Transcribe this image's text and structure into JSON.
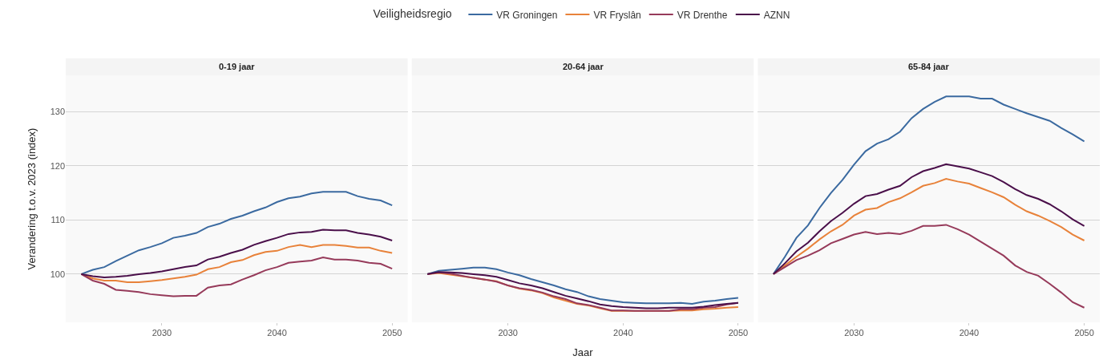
{
  "chart_data": [
    {
      "type": "line",
      "title": "0-19 jaar",
      "ylabel": "Verandering t.o.v. 2023 (index)",
      "legend_title": "Veiligheidsregio",
      "legend": "top",
      "grid": "y",
      "x": [
        2023,
        2024,
        2025,
        2026,
        2027,
        2028,
        2029,
        2030,
        2031,
        2032,
        2033,
        2034,
        2035,
        2036,
        2037,
        2038,
        2039,
        2040,
        2041,
        2042,
        2043,
        2044,
        2045,
        2046,
        2047,
        2048,
        2049,
        2050
      ],
      "xlim": [
        2021.65,
        2051.35
      ],
      "xticks": [
        2030,
        2040,
        2050
      ],
      "ylim": [
        91.1,
        136.7
      ],
      "yticks": [
        100,
        110,
        120,
        130
      ],
      "series": [
        {
          "name": "VR Groningen",
          "color": "#3b6aa0",
          "values": [
            100,
            100.8,
            101.3,
            102.4,
            103.4,
            104.4,
            105.0,
            105.7,
            106.7,
            107.1,
            107.6,
            108.7,
            109.3,
            110.2,
            110.8,
            111.6,
            112.3,
            113.3,
            114.0,
            114.3,
            114.9,
            115.2,
            115.2,
            115.2,
            114.4,
            113.9,
            113.6,
            112.7
          ]
        },
        {
          "name": "VR Fryslân",
          "color": "#e8823a",
          "values": [
            100,
            99.2,
            98.8,
            98.8,
            98.5,
            98.5,
            98.7,
            98.9,
            99.2,
            99.5,
            99.9,
            100.9,
            101.3,
            102.2,
            102.6,
            103.5,
            104.1,
            104.3,
            105.0,
            105.4,
            105.0,
            105.4,
            105.4,
            105.2,
            104.9,
            104.9,
            104.3,
            103.9
          ]
        },
        {
          "name": "VR Drenthe",
          "color": "#963a5a",
          "values": [
            100,
            98.8,
            98.2,
            97.1,
            96.9,
            96.7,
            96.3,
            96.1,
            95.9,
            96.0,
            96.0,
            97.5,
            97.9,
            98.1,
            99.0,
            99.8,
            100.7,
            101.3,
            102.1,
            102.3,
            102.5,
            103.1,
            102.7,
            102.7,
            102.5,
            102.1,
            101.9,
            101.0
          ]
        },
        {
          "name": "AZNN",
          "color": "#4a0f4a",
          "values": [
            100,
            99.6,
            99.4,
            99.5,
            99.7,
            100.0,
            100.2,
            100.5,
            100.9,
            101.3,
            101.6,
            102.7,
            103.2,
            103.9,
            104.5,
            105.4,
            106.1,
            106.7,
            107.4,
            107.7,
            107.8,
            108.2,
            108.1,
            108.1,
            107.6,
            107.3,
            106.9,
            106.2
          ]
        }
      ]
    },
    {
      "type": "line",
      "title": "20-64 jaar",
      "xlabel": "Jaar",
      "grid": "y",
      "tick_labels": "x",
      "x": [
        2023,
        2024,
        2025,
        2026,
        2027,
        2028,
        2029,
        2030,
        2031,
        2032,
        2033,
        2034,
        2035,
        2036,
        2037,
        2038,
        2039,
        2040,
        2041,
        2042,
        2043,
        2044,
        2045,
        2046,
        2047,
        2048,
        2049,
        2050
      ],
      "xlim": [
        2021.65,
        2051.35
      ],
      "xticks": [
        2030,
        2040,
        2050
      ],
      "ylim": [
        91.1,
        136.7
      ],
      "yticks": [
        100,
        110,
        120,
        130
      ],
      "series": [
        {
          "color": "#3b6aa0",
          "values": [
            100,
            100.6,
            100.8,
            101.0,
            101.2,
            101.2,
            100.9,
            100.3,
            99.8,
            99.1,
            98.5,
            97.9,
            97.2,
            96.7,
            95.9,
            95.4,
            95.1,
            94.8,
            94.7,
            94.6,
            94.6,
            94.6,
            94.7,
            94.5,
            94.9,
            95.1,
            95.4,
            95.6
          ]
        },
        {
          "color": "#e8823a",
          "values": [
            100,
            100.2,
            99.9,
            99.6,
            99.3,
            99.0,
            98.7,
            97.9,
            97.3,
            97.0,
            96.5,
            95.7,
            95.1,
            94.5,
            94.2,
            93.7,
            93.2,
            93.2,
            93.2,
            93.2,
            93.2,
            93.2,
            93.3,
            93.3,
            93.5,
            93.6,
            93.8,
            93.9
          ]
        },
        {
          "color": "#963a5a",
          "values": [
            100,
            100.3,
            100.1,
            99.7,
            99.3,
            99.0,
            98.6,
            97.9,
            97.4,
            97.1,
            96.6,
            95.9,
            95.4,
            94.6,
            94.3,
            93.8,
            93.3,
            93.3,
            93.2,
            93.2,
            93.2,
            93.2,
            93.5,
            93.5,
            93.8,
            93.9,
            94.4,
            94.7
          ]
        },
        {
          "color": "#4a0f4a",
          "values": [
            100,
            100.4,
            100.3,
            100.2,
            100.0,
            99.8,
            99.5,
            98.9,
            98.3,
            97.9,
            97.4,
            96.7,
            96.0,
            95.5,
            95.0,
            94.4,
            94.1,
            93.9,
            93.8,
            93.7,
            93.7,
            93.8,
            93.8,
            93.8,
            94.0,
            94.3,
            94.5,
            94.7
          ]
        }
      ]
    },
    {
      "type": "line",
      "title": "65-84 jaar",
      "grid": "y",
      "tick_labels": "x",
      "x": [
        2023,
        2024,
        2025,
        2026,
        2027,
        2028,
        2029,
        2030,
        2031,
        2032,
        2033,
        2034,
        2035,
        2036,
        2037,
        2038,
        2039,
        2040,
        2041,
        2042,
        2043,
        2044,
        2045,
        2046,
        2047,
        2048,
        2049,
        2050
      ],
      "xlim": [
        2021.65,
        2051.35
      ],
      "xticks": [
        2030,
        2040,
        2050
      ],
      "ylim": [
        91.1,
        136.7
      ],
      "yticks": [
        100,
        110,
        120,
        130
      ],
      "series": [
        {
          "color": "#3b6aa0",
          "values": [
            100,
            103.2,
            106.7,
            109.0,
            112.2,
            115.0,
            117.4,
            120.2,
            122.7,
            124.1,
            124.9,
            126.3,
            128.8,
            130.5,
            131.8,
            132.8,
            132.8,
            132.8,
            132.4,
            132.4,
            131.3,
            130.5,
            129.7,
            129.0,
            128.3,
            127.0,
            125.8,
            124.5
          ]
        },
        {
          "color": "#e8823a",
          "values": [
            100,
            101.6,
            103.2,
            104.7,
            106.4,
            107.9,
            109.1,
            110.8,
            111.9,
            112.2,
            113.3,
            114.0,
            115.1,
            116.3,
            116.8,
            117.6,
            117.1,
            116.7,
            115.9,
            115.1,
            114.2,
            112.8,
            111.6,
            110.8,
            109.8,
            108.7,
            107.3,
            106.2
          ]
        },
        {
          "color": "#963a5a",
          "values": [
            100,
            101.3,
            102.6,
            103.4,
            104.4,
            105.7,
            106.5,
            107.3,
            107.8,
            107.4,
            107.6,
            107.4,
            108.0,
            108.9,
            108.9,
            109.1,
            108.3,
            107.3,
            106.0,
            104.7,
            103.4,
            101.6,
            100.4,
            99.7,
            98.2,
            96.6,
            94.8,
            93.8
          ]
        },
        {
          "color": "#4a0f4a",
          "values": [
            100,
            102.0,
            104.2,
            105.8,
            107.9,
            109.8,
            111.3,
            113.0,
            114.4,
            114.8,
            115.6,
            116.3,
            117.9,
            119.0,
            119.6,
            120.3,
            119.9,
            119.5,
            118.8,
            118.1,
            117.0,
            115.7,
            114.6,
            113.9,
            112.9,
            111.6,
            110.1,
            108.9
          ]
        }
      ]
    }
  ]
}
